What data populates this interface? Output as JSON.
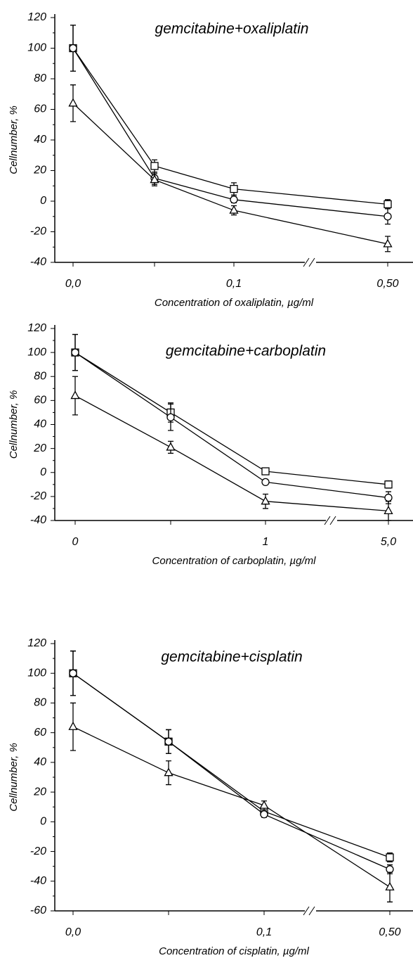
{
  "chart_data": [
    {
      "type": "line",
      "title": "gemcitabine+oxaliplatin",
      "xlabel": "Concentration of oxaliplatin,  µg/ml",
      "ylabel": "Cellnumber, %",
      "categories": [
        "0,0",
        null,
        "0,1",
        "0,50"
      ],
      "ylim": [
        -40,
        120
      ],
      "yticks": [
        -40,
        -20,
        0,
        20,
        40,
        60,
        80,
        100,
        120
      ],
      "axis_break": true,
      "series": [
        {
          "marker": "square",
          "color": "#000000",
          "values": [
            100,
            23,
            8,
            -2
          ],
          "errors": [
            15,
            4,
            4,
            3
          ]
        },
        {
          "marker": "circle",
          "color": "#000000",
          "values": [
            100,
            15,
            1,
            -10
          ],
          "errors": [
            15,
            4,
            2,
            5
          ]
        },
        {
          "marker": "triangle",
          "color": "#000000",
          "values": [
            64,
            14,
            -6,
            -28
          ],
          "errors": [
            12,
            4,
            3,
            5
          ]
        }
      ]
    },
    {
      "type": "line",
      "title": "gemcitabine+carboplatin",
      "xlabel": "Concentration of carboplatin, µg/ml",
      "ylabel": "Cellnumber, %",
      "categories": [
        "0",
        null,
        "1",
        "5,0"
      ],
      "ylim": [
        -40,
        120
      ],
      "yticks": [
        -40,
        -20,
        0,
        20,
        40,
        60,
        80,
        100,
        120
      ],
      "axis_break": true,
      "series": [
        {
          "marker": "square",
          "color": "#000000",
          "values": [
            100,
            50,
            1,
            -10
          ],
          "errors": [
            15,
            8,
            2,
            3
          ]
        },
        {
          "marker": "circle",
          "color": "#000000",
          "values": [
            100,
            46,
            -8,
            -21
          ],
          "errors": [
            15,
            11,
            2,
            5
          ]
        },
        {
          "marker": "triangle",
          "color": "#000000",
          "values": [
            64,
            21,
            -24,
            -32
          ],
          "errors": [
            16,
            5,
            6,
            8
          ]
        }
      ]
    },
    {
      "type": "line",
      "title": "gemcitabine+cisplatin",
      "xlabel": "Concentration of  cisplatin, µg/ml",
      "ylabel": "Cellnumber, %",
      "categories": [
        "0,0",
        null,
        "0,1",
        "0,50"
      ],
      "ylim": [
        -60,
        120
      ],
      "yticks": [
        -60,
        -40,
        -20,
        0,
        20,
        40,
        60,
        80,
        100,
        120
      ],
      "axis_break": true,
      "series": [
        {
          "marker": "square",
          "color": "#000000",
          "values": [
            100,
            54,
            7,
            -24
          ],
          "errors": [
            15,
            8,
            2,
            3
          ]
        },
        {
          "marker": "circle",
          "color": "#000000",
          "values": [
            100,
            54,
            5,
            -32
          ],
          "errors": [
            15,
            8,
            2,
            3
          ]
        },
        {
          "marker": "triangle",
          "color": "#000000",
          "values": [
            64,
            33,
            11,
            -44
          ],
          "errors": [
            16,
            8,
            3,
            10
          ]
        }
      ]
    }
  ]
}
